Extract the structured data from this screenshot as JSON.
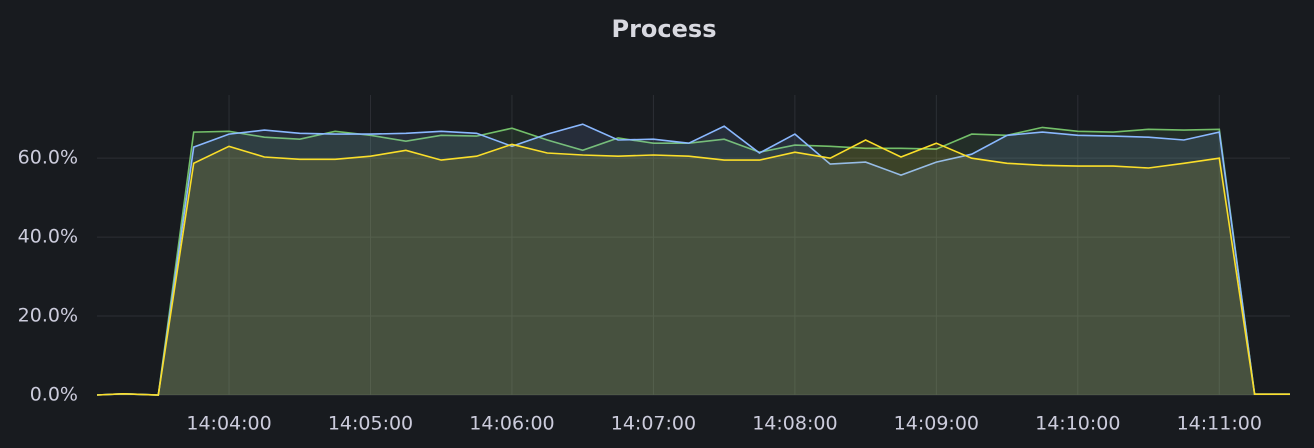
{
  "chart_data": {
    "type": "area",
    "title": "Process",
    "x": [
      "14:03:04",
      "14:03:15",
      "14:03:30",
      "14:03:45",
      "14:04:00",
      "14:04:15",
      "14:04:30",
      "14:04:45",
      "14:05:00",
      "14:05:15",
      "14:05:30",
      "14:05:45",
      "14:06:00",
      "14:06:15",
      "14:06:30",
      "14:06:45",
      "14:07:00",
      "14:07:15",
      "14:07:30",
      "14:07:45",
      "14:08:00",
      "14:08:15",
      "14:08:30",
      "14:08:45",
      "14:09:00",
      "14:09:15",
      "14:09:30",
      "14:09:45",
      "14:10:00",
      "14:10:15",
      "14:10:30",
      "14:10:45",
      "14:11:00",
      "14:11:15",
      "14:11:30"
    ],
    "series": [
      {
        "color": "#73bf69",
        "values": [
          0,
          0.3,
          0,
          66.6,
          66.8,
          65.3,
          64.8,
          66.8,
          65.8,
          64.3,
          65.8,
          65.6,
          67.6,
          64.6,
          62.0,
          65.1,
          63.8,
          63.8,
          64.8,
          61.5,
          63.3,
          63.0,
          62.5,
          62.5,
          62.3,
          66.1,
          65.8,
          67.8,
          66.8,
          66.6,
          67.3,
          67.1,
          67.3,
          0.2,
          0.2
        ]
      },
      {
        "color": "#8ab8ff",
        "values": [
          0,
          0.3,
          0,
          62.8,
          66.1,
          67.1,
          66.3,
          66.1,
          66.1,
          66.3,
          66.8,
          66.3,
          63.0,
          66.1,
          68.6,
          64.6,
          64.8,
          63.8,
          68.1,
          61.3,
          66.1,
          58.5,
          59.0,
          55.7,
          59.0,
          61.0,
          65.8,
          66.6,
          65.8,
          65.6,
          65.3,
          64.6,
          66.6,
          0.2,
          0.2
        ]
      },
      {
        "color": "#fade2a",
        "values": [
          0,
          0.3,
          0,
          58.7,
          63.0,
          60.3,
          59.7,
          59.7,
          60.5,
          62.0,
          59.5,
          60.5,
          63.5,
          61.3,
          60.8,
          60.5,
          60.8,
          60.5,
          59.5,
          59.5,
          61.5,
          60.0,
          64.6,
          60.3,
          63.8,
          60.0,
          58.7,
          58.2,
          58.0,
          58.0,
          57.5,
          58.7,
          60.0,
          0.2,
          0.2
        ]
      }
    ],
    "xlim": [
      "14:03:04",
      "14:11:30"
    ],
    "xticks": [
      "14:04:00",
      "14:05:00",
      "14:06:00",
      "14:07:00",
      "14:08:00",
      "14:09:00",
      "14:10:00",
      "14:11:00"
    ],
    "ylim": [
      0,
      76
    ],
    "yticks": [
      {
        "value": 0,
        "label": "0.0%"
      },
      {
        "value": 20,
        "label": "20.0%"
      },
      {
        "value": 40,
        "label": "40.0%"
      },
      {
        "value": 60,
        "label": "60.0%"
      }
    ],
    "grid": true
  }
}
